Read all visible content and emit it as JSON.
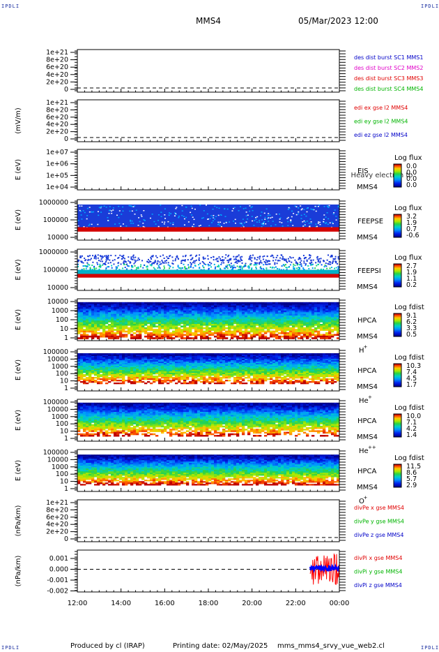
{
  "corner_label": "IPDLI",
  "header": {
    "spacecraft": "MMS4",
    "datetime": "05/Mar/2023 12:00"
  },
  "footer": {
    "produced_by": "Produced by cl (IRAP)",
    "printing_date": "Printing date: 02/May/2025",
    "script": "mms_mms4_srvy_vue_web2.cl"
  },
  "chart_data": {
    "type": "heatmap",
    "x_ticks": [
      "12:00",
      "14:00",
      "16:00",
      "18:00",
      "20:00",
      "22:00",
      "00:00"
    ],
    "panels": [
      {
        "id": "des",
        "kind": "line",
        "ylabel": "",
        "yticks": [
          "1e+21",
          "8e+20",
          "6e+20",
          "4e+20",
          "2e+20",
          "0"
        ],
        "legend": [
          {
            "text": "des dist burst SC1 MMS1",
            "color": "#0000c8"
          },
          {
            "text": "des dist burst SC2 MMS2",
            "color": "#e000c8"
          },
          {
            "text": "des dist burst SC3 MMS3",
            "color": "#e00000"
          },
          {
            "text": "des dist burst SC4 MMS4",
            "color": "#00b400"
          }
        ]
      },
      {
        "id": "edi",
        "kind": "line",
        "ylabel": "(mV/m)",
        "yticks": [
          "1e+21",
          "8e+20",
          "6e+20",
          "4e+20",
          "2e+20",
          "0"
        ],
        "legend": [
          {
            "text": "edi ex gse l2 MMS4",
            "color": "#e00000"
          },
          {
            "text": "edi ey gse l2 MMS4",
            "color": "#00b400"
          },
          {
            "text": "edi ez gse l2 MMS4",
            "color": "#0000c8"
          }
        ]
      },
      {
        "id": "eis",
        "kind": "spec",
        "ylabel": "E (eV)",
        "yticks": [
          "1e+07",
          "1e+06",
          "1e+05",
          "1e+04"
        ],
        "instrument": "EIS",
        "sc": "MMS4",
        "species": "",
        "overlay": "Heavy electron to",
        "cbar_title": "Log flux",
        "cbar_ticks": [
          "0.0",
          "0.0",
          "0.0",
          "0.0"
        ]
      },
      {
        "id": "feeps_e",
        "kind": "spec",
        "ylabel": "E (eV)",
        "yticks": [
          "1000000",
          "100000",
          "10000"
        ],
        "instrument": "FEEPSE",
        "sc": "MMS4",
        "species": "",
        "cbar_title": "Log flux",
        "cbar_ticks": [
          "3.2",
          "1.9",
          "0.7",
          "-0.6"
        ]
      },
      {
        "id": "feeps_i",
        "kind": "spec",
        "ylabel": "E (eV)",
        "yticks": [
          "1000000",
          "100000",
          "10000"
        ],
        "instrument": "FEEPSI",
        "sc": "MMS4",
        "species": "",
        "cbar_title": "Log flux",
        "cbar_ticks": [
          "2.7",
          "1.9",
          "1.1",
          "0.2"
        ]
      },
      {
        "id": "hpca_h",
        "kind": "spec",
        "ylabel": "E (eV)",
        "yticks": [
          "10000",
          "1000",
          "100",
          "10",
          "1"
        ],
        "instrument": "HPCA",
        "sc": "MMS4",
        "species": "H",
        "charge": "+",
        "cbar_title": "Log fdist",
        "cbar_ticks": [
          "9.1",
          "6.2",
          "3.3",
          "0.5"
        ]
      },
      {
        "id": "hpca_he",
        "kind": "spec",
        "ylabel": "E (eV)",
        "yticks": [
          "100000",
          "10000",
          "1000",
          "100",
          "10",
          "1"
        ],
        "instrument": "HPCA",
        "sc": "MMS4",
        "species": "He",
        "charge": "+",
        "cbar_title": "Log fdist",
        "cbar_ticks": [
          "10.3",
          "7.4",
          "4.5",
          "1.7"
        ]
      },
      {
        "id": "hpca_hepp",
        "kind": "spec",
        "ylabel": "E (eV)",
        "yticks": [
          "100000",
          "10000",
          "1000",
          "100",
          "10",
          "1"
        ],
        "instrument": "HPCA",
        "sc": "MMS4",
        "species": "He",
        "charge": "++",
        "cbar_title": "Log fdist",
        "cbar_ticks": [
          "10.0",
          "7.1",
          "4.2",
          "1.4"
        ]
      },
      {
        "id": "hpca_o",
        "kind": "spec",
        "ylabel": "E (eV)",
        "yticks": [
          "100000",
          "10000",
          "1000",
          "100",
          "10",
          "1"
        ],
        "instrument": "HPCA",
        "sc": "MMS4",
        "species": "O",
        "charge": "+",
        "cbar_title": "Log fdist",
        "cbar_ticks": [
          "11.5",
          "8.6",
          "5.7",
          "2.9"
        ]
      },
      {
        "id": "divpe",
        "kind": "line",
        "ylabel": "(nPa/km)",
        "yticks": [
          "1e+21",
          "8e+20",
          "6e+20",
          "4e+20",
          "2e+20",
          "0"
        ],
        "legend": [
          {
            "text": "divPe x gse MMS4",
            "color": "#e00000"
          },
          {
            "text": "divPe y gse MMS4",
            "color": "#00b400"
          },
          {
            "text": "divPe z gse MMS4",
            "color": "#0000c8"
          }
        ]
      },
      {
        "id": "divpi",
        "kind": "line",
        "ylabel": "(nPa/km)",
        "yticks": [
          "0.001",
          "0.000",
          "-0.001",
          "-0.002"
        ],
        "legend": [
          {
            "text": "divPi x gse MMS4",
            "color": "#e00000"
          },
          {
            "text": "divPi y gse MMS4",
            "color": "#00b400"
          },
          {
            "text": "divPi z gse MMS4",
            "color": "#0000c8"
          }
        ],
        "ylim": [
          -0.002,
          0.0015
        ],
        "burst_interval": [
          "22:40",
          "00:00"
        ],
        "series": [
          {
            "name": "divPi x gse MMS4",
            "range": [
              -0.0014,
              0.0012
            ]
          },
          {
            "name": "divPi z gse MMS4",
            "range": [
              -0.0002,
              0.0002
            ]
          }
        ]
      }
    ]
  }
}
